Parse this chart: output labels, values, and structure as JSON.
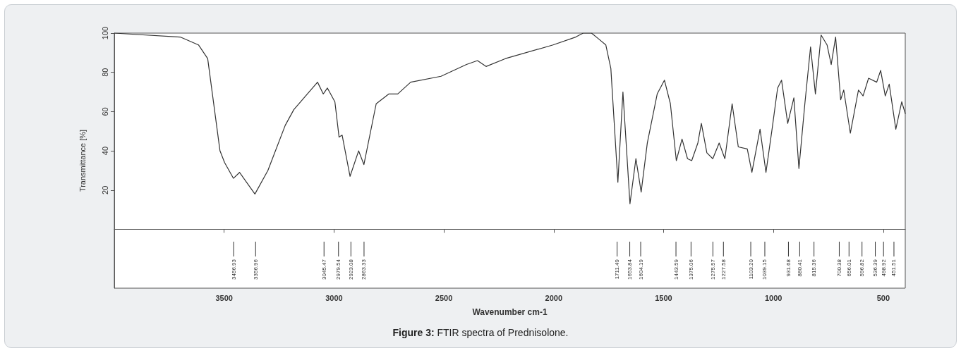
{
  "chart_data": {
    "type": "line",
    "title": "Figure 3: FTIR spectra of Prednisolone.",
    "xlabel": "Wavenumber cm-1",
    "ylabel": "Transmittance [%]",
    "x": [
      4000,
      3700,
      3617,
      3575,
      3519,
      3498,
      3458,
      3430,
      3360,
      3301,
      3222,
      3183,
      3075,
      3049,
      3030,
      2996,
      2977,
      2963,
      2927,
      2888,
      2864,
      2808,
      2750,
      2710,
      2651,
      2513,
      2397,
      2347,
      2308,
      2220,
      2003,
      1900,
      1866,
      1828,
      1795,
      1763,
      1740,
      1708,
      1685,
      1653,
      1626,
      1602,
      1574,
      1529,
      1496,
      1469,
      1442,
      1416,
      1391,
      1372,
      1344,
      1328,
      1303,
      1276,
      1247,
      1221,
      1188,
      1160,
      1119,
      1098,
      1061,
      1034,
      1005,
      981,
      963,
      935,
      907,
      884,
      857,
      831,
      809,
      783,
      756,
      737,
      717,
      694,
      680,
      650,
      613,
      592,
      567,
      530,
      512,
      491,
      473,
      443,
      416,
      400
    ],
    "series": [
      {
        "color": "#333333",
        "values": [
          100,
          98,
          94,
          87,
          40,
          34,
          26,
          29,
          18,
          30,
          53,
          61,
          75,
          69,
          72,
          65,
          47,
          48,
          27,
          40,
          33,
          64,
          69,
          69,
          75,
          78,
          84,
          86,
          83,
          87,
          94,
          98,
          100,
          100,
          97,
          94,
          82,
          24,
          70,
          13,
          36,
          19,
          44,
          69,
          76,
          64,
          35,
          46,
          36,
          35,
          44,
          54,
          39,
          36,
          44,
          36,
          64,
          42,
          41,
          29,
          51,
          29,
          52,
          72,
          76,
          54,
          67,
          31,
          64,
          93,
          69,
          99,
          94,
          84,
          98,
          66,
          71,
          49,
          71,
          68,
          77,
          75,
          81,
          68,
          74,
          51,
          65,
          59
        ]
      }
    ],
    "xlim": [
      4000,
      400
    ],
    "xticks": [
      3500,
      3000,
      2500,
      2000,
      1500,
      1000,
      500
    ],
    "ylim": [
      -30,
      100
    ],
    "yticks": [
      20,
      40,
      60,
      80,
      100
    ],
    "grid": false,
    "marker": "none",
    "line_style": "solid",
    "annotations": [
      {
        "text": "3456.93",
        "x": 3456.93
      },
      {
        "text": "3356.96",
        "x": 3356.96
      },
      {
        "text": "3045.47",
        "x": 3045.47
      },
      {
        "text": "2979.54",
        "x": 2979.54
      },
      {
        "text": "2923.08",
        "x": 2923.08
      },
      {
        "text": "2863.33",
        "x": 2863.33
      },
      {
        "text": "1711.49",
        "x": 1711.49
      },
      {
        "text": "1653.84",
        "x": 1653.84
      },
      {
        "text": "1604.19",
        "x": 1604.19
      },
      {
        "text": "1443.59",
        "x": 1443.59
      },
      {
        "text": "1375.06",
        "x": 1375.06
      },
      {
        "text": "1275.57",
        "x": 1275.57
      },
      {
        "text": "1227.58",
        "x": 1227.58
      },
      {
        "text": "1103.20",
        "x": 1103.2
      },
      {
        "text": "1039.15",
        "x": 1039.15
      },
      {
        "text": "931.68",
        "x": 931.68
      },
      {
        "text": "880.41",
        "x": 880.41
      },
      {
        "text": "815.36",
        "x": 815.36
      },
      {
        "text": "700.38",
        "x": 700.38
      },
      {
        "text": "656.01",
        "x": 656.01
      },
      {
        "text": "596.82",
        "x": 596.82
      },
      {
        "text": "536.39",
        "x": 536.39
      },
      {
        "text": "498.92",
        "x": 498.92
      },
      {
        "text": "451.51",
        "x": 451.51
      }
    ]
  }
}
